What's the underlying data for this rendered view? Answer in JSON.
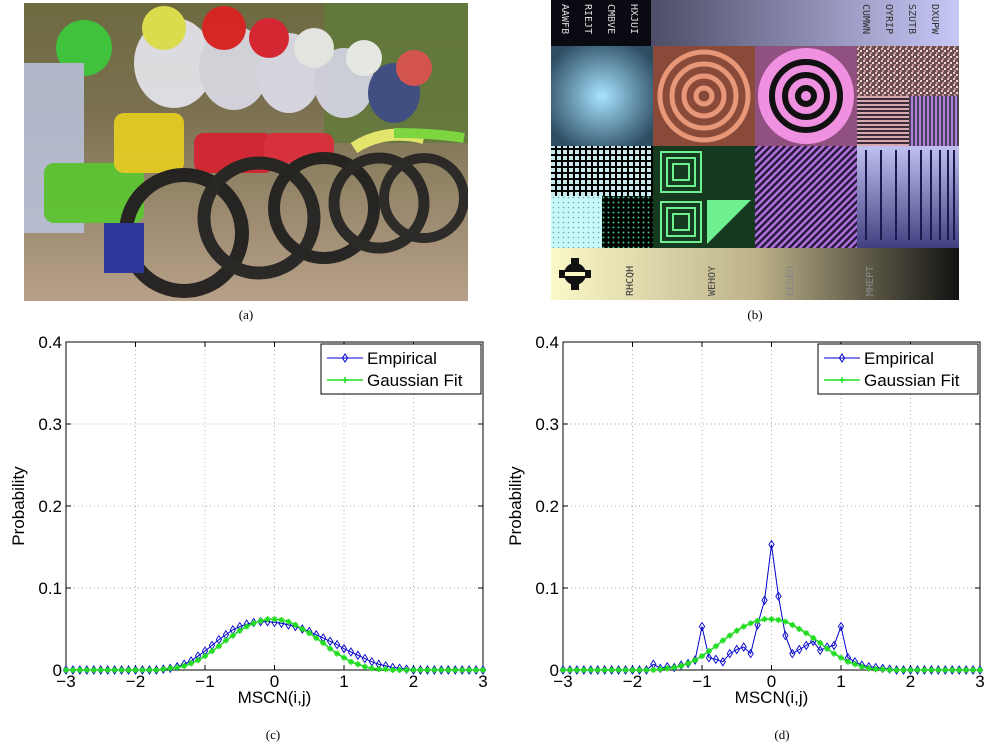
{
  "captions": {
    "a": "(a)",
    "b": "(b)",
    "c": "(c)",
    "d": "(d)"
  },
  "test_chart": {
    "top_codes": [
      "AAWFB",
      "RIEJT",
      "CMBVE",
      "HXJUI"
    ],
    "right_codes": [
      "CUMWN",
      "OYRIP",
      "SZUTB",
      "DXUPW"
    ],
    "bottom_codes": [
      "RHCQH",
      "WEHOY",
      "EEGEO",
      "MHEPT"
    ]
  },
  "colors": {
    "empirical": "#0000cc",
    "gaussian": "#22dd22"
  },
  "chart_data": [
    {
      "type": "line",
      "xlabel": "MSCN(i,j)",
      "ylabel": "Probability",
      "xlim": [
        -3,
        3
      ],
      "ylim": [
        0,
        0.4
      ],
      "xticks": [
        -3,
        -2,
        -1,
        0,
        1,
        2,
        3
      ],
      "yticks": [
        0,
        0.1,
        0.2,
        0.3,
        0.4
      ],
      "xtick_labels": [
        "−3",
        "−2",
        "−1",
        "0",
        "1",
        "2",
        "3"
      ],
      "ytick_labels": [
        "0",
        "0.1",
        "0.2",
        "0.3",
        "0.4"
      ],
      "grid": true,
      "legend": "top-right",
      "series": [
        {
          "name": "Empirical",
          "marker": "diamond",
          "x": [
            -3.0,
            -2.9,
            -2.8,
            -2.7,
            -2.6,
            -2.5,
            -2.4,
            -2.3,
            -2.2,
            -2.1,
            -2.0,
            -1.9,
            -1.8,
            -1.7,
            -1.6,
            -1.5,
            -1.4,
            -1.3,
            -1.2,
            -1.1,
            -1.0,
            -0.9,
            -0.8,
            -0.7,
            -0.6,
            -0.5,
            -0.4,
            -0.3,
            -0.2,
            -0.1,
            0.0,
            0.1,
            0.2,
            0.3,
            0.4,
            0.5,
            0.6,
            0.7,
            0.8,
            0.9,
            1.0,
            1.1,
            1.2,
            1.3,
            1.4,
            1.5,
            1.6,
            1.7,
            1.8,
            1.9,
            2.0,
            2.1,
            2.2,
            2.3,
            2.4,
            2.5,
            2.6,
            2.7,
            2.8,
            2.9,
            3.0
          ],
          "y": [
            0,
            0,
            0,
            0,
            0,
            0,
            0,
            0,
            0,
            0,
            0,
            0,
            0,
            0,
            0.001,
            0.002,
            0.004,
            0.007,
            0.011,
            0.017,
            0.023,
            0.03,
            0.037,
            0.043,
            0.049,
            0.053,
            0.056,
            0.058,
            0.059,
            0.059,
            0.058,
            0.057,
            0.055,
            0.053,
            0.05,
            0.047,
            0.043,
            0.039,
            0.035,
            0.031,
            0.026,
            0.022,
            0.018,
            0.014,
            0.01,
            0.007,
            0.005,
            0.003,
            0.002,
            0.001,
            0,
            0,
            0,
            0,
            0,
            0,
            0,
            0,
            0,
            0,
            0
          ]
        },
        {
          "name": "Gaussian Fit",
          "marker": "star",
          "x": [
            -3.0,
            -2.9,
            -2.8,
            -2.7,
            -2.6,
            -2.5,
            -2.4,
            -2.3,
            -2.2,
            -2.1,
            -2.0,
            -1.9,
            -1.8,
            -1.7,
            -1.6,
            -1.5,
            -1.4,
            -1.3,
            -1.2,
            -1.1,
            -1.0,
            -0.9,
            -0.8,
            -0.7,
            -0.6,
            -0.5,
            -0.4,
            -0.3,
            -0.2,
            -0.1,
            0.0,
            0.1,
            0.2,
            0.3,
            0.4,
            0.5,
            0.6,
            0.7,
            0.8,
            0.9,
            1.0,
            1.1,
            1.2,
            1.3,
            1.4,
            1.5,
            1.6,
            1.7,
            1.8,
            1.9,
            2.0,
            2.1,
            2.2,
            2.3,
            2.4,
            2.5,
            2.6,
            2.7,
            2.8,
            2.9,
            3.0
          ],
          "y": [
            0,
            0,
            0,
            0,
            0,
            0,
            0,
            0,
            0,
            0,
            0,
            0,
            0,
            0,
            0.001,
            0.002,
            0.003,
            0.005,
            0.008,
            0.012,
            0.017,
            0.023,
            0.029,
            0.036,
            0.042,
            0.048,
            0.053,
            0.057,
            0.06,
            0.062,
            0.062,
            0.061,
            0.059,
            0.055,
            0.05,
            0.045,
            0.039,
            0.033,
            0.026,
            0.02,
            0.015,
            0.01,
            0.007,
            0.004,
            0.002,
            0.001,
            0.001,
            0,
            0,
            0,
            0,
            0,
            0,
            0,
            0,
            0,
            0,
            0,
            0,
            0,
            0
          ]
        }
      ]
    },
    {
      "type": "line",
      "xlabel": "MSCN(i,j)",
      "ylabel": "Probability",
      "xlim": [
        -3,
        3
      ],
      "ylim": [
        0,
        0.4
      ],
      "xticks": [
        -3,
        -2,
        -1,
        0,
        1,
        2,
        3
      ],
      "yticks": [
        0,
        0.1,
        0.2,
        0.3,
        0.4
      ],
      "xtick_labels": [
        "−3",
        "−2",
        "−1",
        "0",
        "1",
        "2",
        "3"
      ],
      "ytick_labels": [
        "0",
        "0.1",
        "0.2",
        "0.3",
        "0.4"
      ],
      "grid": true,
      "legend": "top-right",
      "series": [
        {
          "name": "Empirical",
          "marker": "diamond",
          "x": [
            -3.0,
            -2.9,
            -2.8,
            -2.7,
            -2.6,
            -2.5,
            -2.4,
            -2.3,
            -2.2,
            -2.1,
            -2.0,
            -1.9,
            -1.8,
            -1.7,
            -1.6,
            -1.5,
            -1.4,
            -1.3,
            -1.2,
            -1.1,
            -1.0,
            -0.9,
            -0.8,
            -0.7,
            -0.6,
            -0.5,
            -0.4,
            -0.3,
            -0.2,
            -0.1,
            0.0,
            0.1,
            0.2,
            0.3,
            0.4,
            0.5,
            0.6,
            0.7,
            0.8,
            0.9,
            1.0,
            1.1,
            1.2,
            1.3,
            1.4,
            1.5,
            1.6,
            1.7,
            1.8,
            1.9,
            2.0,
            2.1,
            2.2,
            2.3,
            2.4,
            2.5,
            2.6,
            2.7,
            2.8,
            2.9,
            3.0
          ],
          "y": [
            0,
            0,
            0,
            0,
            0,
            0,
            0,
            0,
            0,
            0,
            0,
            0,
            0,
            0.007,
            0.002,
            0.004,
            0.003,
            0.006,
            0.008,
            0.012,
            0.053,
            0.015,
            0.013,
            0.01,
            0.02,
            0.025,
            0.028,
            0.02,
            0.055,
            0.085,
            0.153,
            0.09,
            0.042,
            0.02,
            0.025,
            0.03,
            0.035,
            0.024,
            0.028,
            0.03,
            0.053,
            0.015,
            0.01,
            0.006,
            0.004,
            0.003,
            0.002,
            0.001,
            0,
            0,
            0,
            0,
            0,
            0,
            0,
            0,
            0,
            0,
            0,
            0,
            0
          ]
        },
        {
          "name": "Gaussian Fit",
          "marker": "star",
          "x": [
            -3.0,
            -2.9,
            -2.8,
            -2.7,
            -2.6,
            -2.5,
            -2.4,
            -2.3,
            -2.2,
            -2.1,
            -2.0,
            -1.9,
            -1.8,
            -1.7,
            -1.6,
            -1.5,
            -1.4,
            -1.3,
            -1.2,
            -1.1,
            -1.0,
            -0.9,
            -0.8,
            -0.7,
            -0.6,
            -0.5,
            -0.4,
            -0.3,
            -0.2,
            -0.1,
            0.0,
            0.1,
            0.2,
            0.3,
            0.4,
            0.5,
            0.6,
            0.7,
            0.8,
            0.9,
            1.0,
            1.1,
            1.2,
            1.3,
            1.4,
            1.5,
            1.6,
            1.7,
            1.8,
            1.9,
            2.0,
            2.1,
            2.2,
            2.3,
            2.4,
            2.5,
            2.6,
            2.7,
            2.8,
            2.9,
            3.0
          ],
          "y": [
            0,
            0,
            0,
            0,
            0,
            0,
            0,
            0,
            0,
            0,
            0,
            0,
            0,
            0,
            0.001,
            0.002,
            0.003,
            0.005,
            0.008,
            0.012,
            0.017,
            0.023,
            0.029,
            0.036,
            0.042,
            0.048,
            0.053,
            0.057,
            0.06,
            0.062,
            0.062,
            0.061,
            0.059,
            0.055,
            0.05,
            0.045,
            0.039,
            0.033,
            0.026,
            0.02,
            0.015,
            0.01,
            0.007,
            0.004,
            0.002,
            0.001,
            0.001,
            0,
            0,
            0,
            0,
            0,
            0,
            0,
            0,
            0,
            0,
            0,
            0,
            0,
            0
          ]
        }
      ]
    }
  ]
}
